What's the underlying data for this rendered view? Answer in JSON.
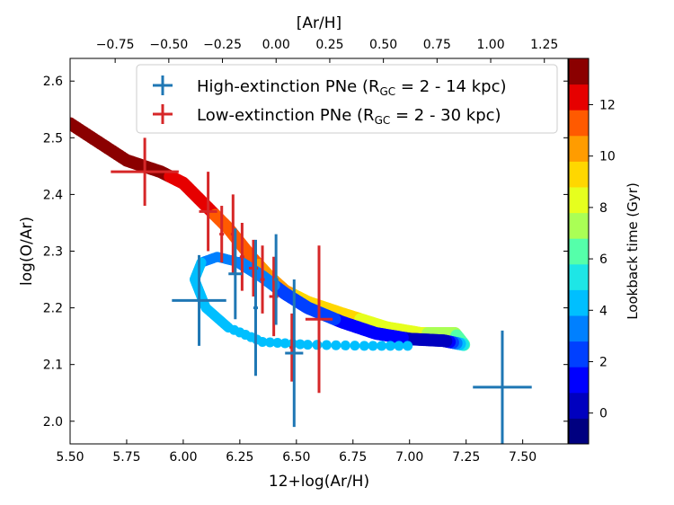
{
  "chart_data": {
    "type": "scatter",
    "xlabel": "12+log(Ar/H)",
    "ylabel": "log(O/Ar)",
    "top_xlabel": "[Ar/H]",
    "colorbar_label": "Lookback time  (Gyr)",
    "xlim": [
      5.5,
      7.7
    ],
    "ylim": [
      1.96,
      2.64
    ],
    "top_xlim": [
      -0.96,
      1.36
    ],
    "colorbar_lim": [
      -1.2,
      13.8
    ],
    "x_ticks": [
      "5.50",
      "5.75",
      "6.00",
      "6.25",
      "6.50",
      "6.75",
      "7.00",
      "7.25",
      "7.50"
    ],
    "y_ticks": [
      "2.0",
      "2.1",
      "2.2",
      "2.3",
      "2.4",
      "2.5",
      "2.6"
    ],
    "top_x_ticks": [
      "−0.75",
      "−0.50",
      "−0.25",
      "0.00",
      "0.25",
      "0.50",
      "0.75",
      "1.00",
      "1.25"
    ],
    "colorbar_ticks": [
      "0",
      "2",
      "4",
      "6",
      "8",
      "10",
      "12"
    ],
    "legend_position": "top-right",
    "legend": [
      {
        "label": "High-extinction PNe (R",
        "sub": "GC",
        "tail": " = 2 - 14 kpc)",
        "color": "#1f77b4"
      },
      {
        "label": "Low-extinction PNe (R",
        "sub": "GC",
        "tail": " = 2 - 30 kpc)",
        "color": "#d62728"
      }
    ],
    "series": [
      {
        "name": "High-extinction PNe (RGC = 2 - 14 kpc)",
        "color": "#1f77b4",
        "points": [
          {
            "x": 6.07,
            "y": 2.213,
            "xerr": 0.12,
            "yerr": 0.08
          },
          {
            "x": 6.23,
            "y": 2.26,
            "xerr": 0.03,
            "yerr": 0.08
          },
          {
            "x": 6.32,
            "y": 2.2,
            "xerr": 0.01,
            "yerr": 0.12
          },
          {
            "x": 6.41,
            "y": 2.25,
            "xerr": 0.01,
            "yerr": 0.08
          },
          {
            "x": 6.49,
            "y": 2.12,
            "xerr": 0.04,
            "yerr": 0.13
          },
          {
            "x": 7.41,
            "y": 2.06,
            "xerr": 0.13,
            "yerr": 0.1
          }
        ]
      },
      {
        "name": "Low-extinction PNe (RGC = 2 - 30 kpc)",
        "color": "#d62728",
        "points": [
          {
            "x": 5.83,
            "y": 2.44,
            "xerr": 0.15,
            "yerr": 0.06
          },
          {
            "x": 6.11,
            "y": 2.37,
            "xerr": 0.04,
            "yerr": 0.07
          },
          {
            "x": 6.17,
            "y": 2.33,
            "xerr": 0.01,
            "yerr": 0.05
          },
          {
            "x": 6.22,
            "y": 2.33,
            "xerr": 0.01,
            "yerr": 0.07
          },
          {
            "x": 6.26,
            "y": 2.29,
            "xerr": 0.01,
            "yerr": 0.06
          },
          {
            "x": 6.31,
            "y": 2.27,
            "xerr": 0.02,
            "yerr": 0.05
          },
          {
            "x": 6.35,
            "y": 2.25,
            "xerr": 0.01,
            "yerr": 0.06
          },
          {
            "x": 6.4,
            "y": 2.22,
            "xerr": 0.02,
            "yerr": 0.07
          },
          {
            "x": 6.48,
            "y": 2.13,
            "xerr": 0.01,
            "yerr": 0.06
          },
          {
            "x": 6.6,
            "y": 2.18,
            "xerr": 0.06,
            "yerr": 0.13
          }
        ]
      },
      {
        "name": "model track",
        "points": [
          {
            "x": 5.5,
            "y": 2.525,
            "t": 13.7
          },
          {
            "x": 5.75,
            "y": 2.46,
            "t": 13.5
          },
          {
            "x": 5.9,
            "y": 2.44,
            "t": 13.0
          },
          {
            "x": 6.0,
            "y": 2.42,
            "t": 12.5
          },
          {
            "x": 6.1,
            "y": 2.38,
            "t": 12.0
          },
          {
            "x": 6.2,
            "y": 2.34,
            "t": 11.5
          },
          {
            "x": 6.3,
            "y": 2.29,
            "t": 11.0
          },
          {
            "x": 6.38,
            "y": 2.255,
            "t": 10.5
          },
          {
            "x": 6.45,
            "y": 2.23,
            "t": 10.0
          },
          {
            "x": 6.55,
            "y": 2.21,
            "t": 9.5
          },
          {
            "x": 6.7,
            "y": 2.19,
            "t": 9.0
          },
          {
            "x": 6.9,
            "y": 2.165,
            "t": 8.5
          },
          {
            "x": 7.05,
            "y": 2.155,
            "t": 8.0
          },
          {
            "x": 7.2,
            "y": 2.155,
            "t": 7.0
          },
          {
            "x": 7.22,
            "y": 2.145,
            "t": 6.5
          },
          {
            "x": 7.24,
            "y": 2.135,
            "t": 6.0
          },
          {
            "x": 7.15,
            "y": 2.142,
            "t": 0.0
          },
          {
            "x": 7.0,
            "y": 2.145,
            "t": 0.7
          },
          {
            "x": 6.85,
            "y": 2.155,
            "t": 1.2
          },
          {
            "x": 6.7,
            "y": 2.175,
            "t": 1.7
          },
          {
            "x": 6.55,
            "y": 2.2,
            "t": 2.2
          },
          {
            "x": 6.45,
            "y": 2.225,
            "t": 2.6
          },
          {
            "x": 6.35,
            "y": 2.255,
            "t": 3.0
          },
          {
            "x": 6.25,
            "y": 2.28,
            "t": 3.3
          },
          {
            "x": 6.15,
            "y": 2.29,
            "t": 3.6
          },
          {
            "x": 6.08,
            "y": 2.28,
            "t": 3.8
          },
          {
            "x": 6.05,
            "y": 2.25,
            "t": 3.9
          },
          {
            "x": 6.1,
            "y": 2.2,
            "t": 4.0
          },
          {
            "x": 6.2,
            "y": 2.165,
            "t": 4.1
          },
          {
            "x": 6.35,
            "y": 2.14,
            "t": 4.2
          },
          {
            "x": 6.55,
            "y": 2.135,
            "t": 4.3
          },
          {
            "x": 6.8,
            "y": 2.133,
            "t": 4.4
          },
          {
            "x": 7.03,
            "y": 2.133,
            "t": 4.5
          }
        ]
      }
    ],
    "colormap": "jet (discrete)"
  }
}
